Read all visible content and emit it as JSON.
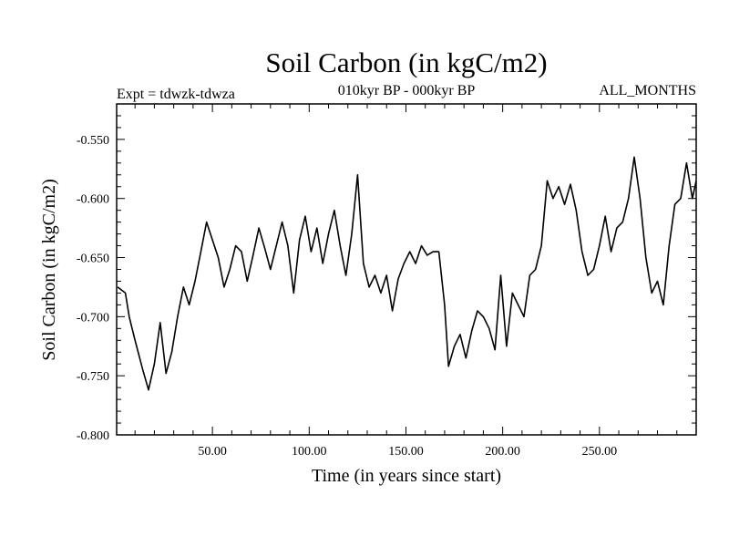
{
  "chart_data": {
    "type": "line",
    "title": "Soil Carbon (in kgC/m2)",
    "left_note": "Expt = tdwzk-tdwza",
    "center_note": "010kyr BP - 000kyr BP",
    "right_note": "ALL_MONTHS",
    "xlabel": "Time (in years since start)",
    "ylabel": "Soil Carbon (in kgC/m2)",
    "xlim": [
      0.5,
      300
    ],
    "ylim": [
      -0.8,
      -0.52
    ],
    "x_ticks": [
      50,
      100,
      150,
      200,
      250
    ],
    "x_tick_labels": [
      "50.00",
      "100.00",
      "150.00",
      "200.00",
      "250.00"
    ],
    "y_ticks": [
      -0.8,
      -0.75,
      -0.7,
      -0.65,
      -0.6,
      -0.55
    ],
    "y_tick_labels": [
      "-0.800",
      "-0.750",
      "-0.700",
      "-0.650",
      "-0.600",
      "-0.550"
    ],
    "series": [
      {
        "color": "#000000",
        "x": [
          1,
          5,
          7,
          10,
          14,
          17,
          20,
          23,
          26,
          29,
          32,
          35,
          38,
          41,
          44,
          47,
          50,
          53,
          56,
          59,
          62,
          65,
          68,
          71,
          74,
          77,
          80,
          83,
          86,
          89,
          92,
          95,
          98,
          101,
          104,
          107,
          110,
          113,
          116,
          119,
          122,
          125,
          128,
          131,
          134,
          137,
          140,
          143,
          146,
          149,
          152,
          155,
          158,
          161,
          164,
          167,
          170,
          172,
          175,
          178,
          181,
          184,
          187,
          190,
          193,
          196,
          199,
          202,
          205,
          208,
          211,
          214,
          217,
          220,
          223,
          226,
          229,
          232,
          235,
          238,
          241,
          244,
          247,
          250,
          253,
          256,
          259,
          262,
          265,
          268,
          271,
          274,
          277,
          280,
          283,
          286,
          289,
          292,
          295,
          298,
          300
        ],
        "y": [
          -0.675,
          -0.68,
          -0.7,
          -0.72,
          -0.745,
          -0.762,
          -0.74,
          -0.705,
          -0.748,
          -0.73,
          -0.7,
          -0.675,
          -0.69,
          -0.67,
          -0.645,
          -0.62,
          -0.635,
          -0.65,
          -0.675,
          -0.66,
          -0.64,
          -0.645,
          -0.67,
          -0.648,
          -0.625,
          -0.642,
          -0.66,
          -0.64,
          -0.62,
          -0.64,
          -0.68,
          -0.635,
          -0.615,
          -0.645,
          -0.625,
          -0.655,
          -0.63,
          -0.61,
          -0.64,
          -0.665,
          -0.63,
          -0.58,
          -0.655,
          -0.675,
          -0.665,
          -0.68,
          -0.665,
          -0.695,
          -0.668,
          -0.655,
          -0.645,
          -0.655,
          -0.64,
          -0.648,
          -0.645,
          -0.645,
          -0.69,
          -0.742,
          -0.725,
          -0.715,
          -0.735,
          -0.712,
          -0.695,
          -0.7,
          -0.71,
          -0.728,
          -0.665,
          -0.725,
          -0.68,
          -0.69,
          -0.7,
          -0.665,
          -0.66,
          -0.64,
          -0.585,
          -0.6,
          -0.59,
          -0.605,
          -0.588,
          -0.61,
          -0.645,
          -0.665,
          -0.66,
          -0.64,
          -0.615,
          -0.645,
          -0.625,
          -0.62,
          -0.6,
          -0.565,
          -0.6,
          -0.65,
          -0.68,
          -0.67,
          -0.69,
          -0.64,
          -0.605,
          -0.6,
          -0.57,
          -0.6,
          -0.585
        ]
      }
    ]
  }
}
